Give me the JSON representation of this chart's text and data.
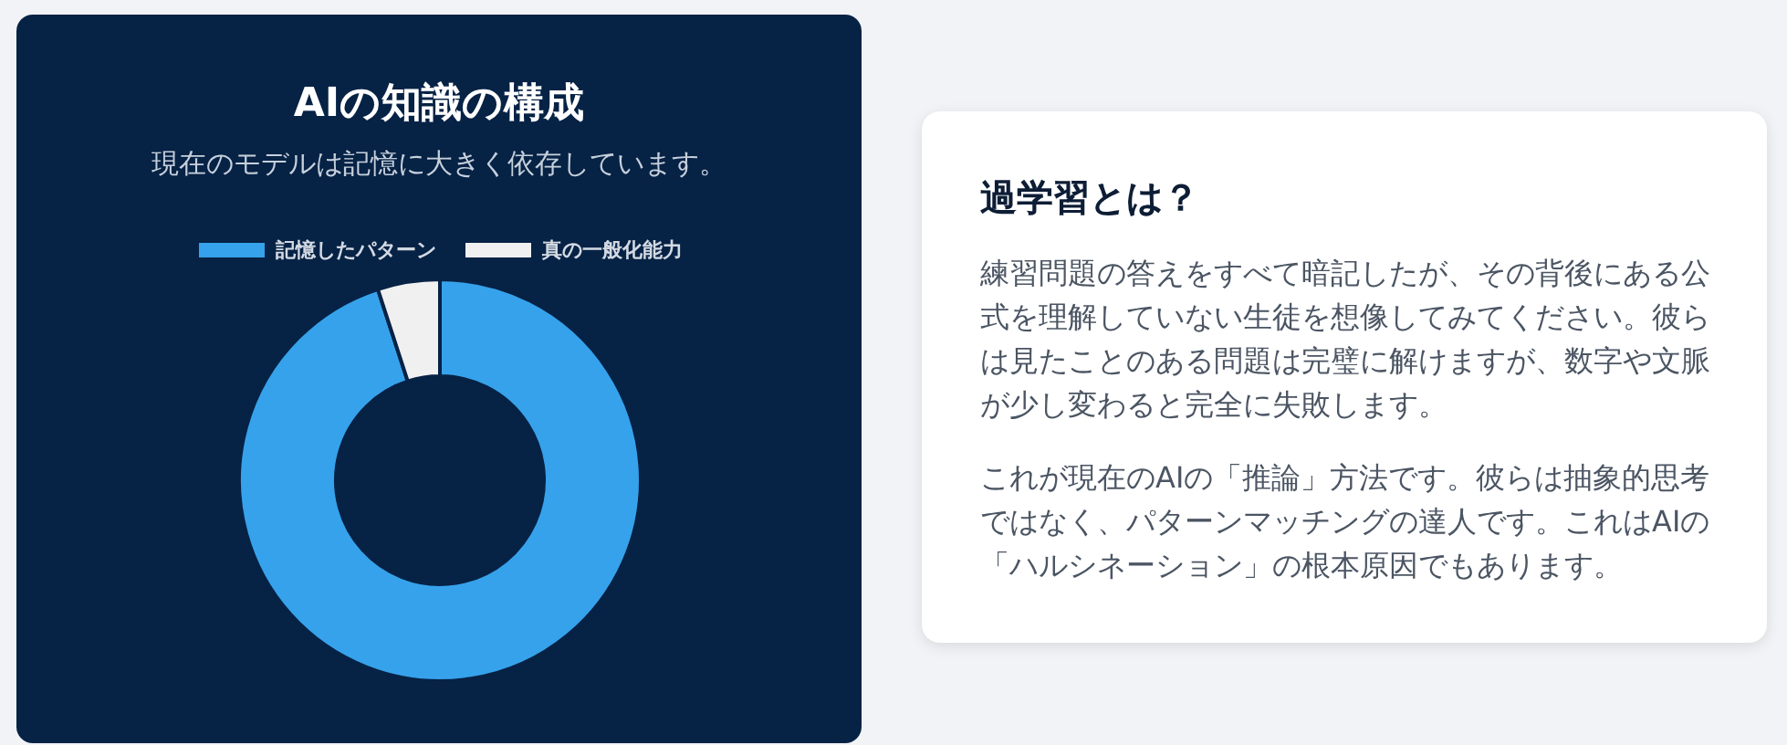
{
  "chart_data": [
    {
      "type": "donut",
      "title": "AIの知識の構成",
      "subtitle": "現在のモデルは記憶に大きく依存しています。",
      "categories": [
        "記憶したパターン",
        "真の一般化能力"
      ],
      "values": [
        95,
        5
      ],
      "colors": [
        "#36a2eb",
        "#f0f0f0"
      ],
      "legend": "top"
    },
    {
      "type": "other",
      "title": "過学習とは？",
      "annotations": [
        "練習問題の答えをすべて暗記したが、その背後にある公式を理解していない生徒を想像してみてください。彼らは見たことのある問題は完璧に解けますが、数字や文脈が少し変わると完全に失敗します。",
        "これが現在のAIの「推論」方法です。彼らは抽象的思考ではなく、パターンマッチングの達人です。これはAIの「ハルシネーション」の根本原因でもあります。"
      ]
    }
  ]
}
